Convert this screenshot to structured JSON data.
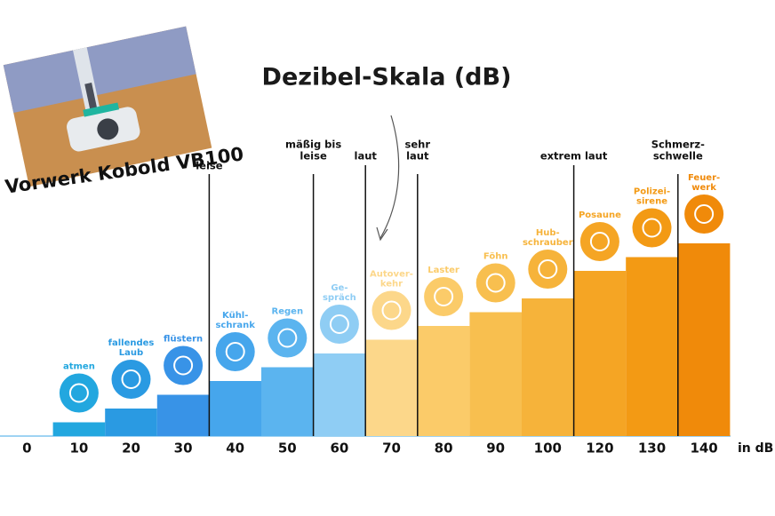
{
  "chart_data": {
    "type": "bar",
    "title": "Dezibel-Skala (dB)",
    "x_unit": "in dB",
    "overlay_caption": "Vorwerk Kobold VB100",
    "categories": [
      "0",
      "10",
      "20",
      "30",
      "40",
      "50",
      "60",
      "70",
      "80",
      "90",
      "100",
      "120",
      "130",
      "140"
    ],
    "values": [
      0,
      10,
      20,
      30,
      40,
      50,
      60,
      70,
      80,
      90,
      100,
      120,
      130,
      140
    ],
    "ylim": [
      0,
      145
    ],
    "colors": [
      "#7ec3ee",
      "#22a7df",
      "#2a9ae2",
      "#3893e7",
      "#46a6ec",
      "#5bb4ef",
      "#8fcdf4",
      "#fcd78a",
      "#fbcb69",
      "#f8bf4f",
      "#f6b33a",
      "#f5a524",
      "#f39a14",
      "#f08a0a"
    ],
    "icon_labels": [
      null,
      [
        "atmen"
      ],
      [
        "fallendes",
        "Laub"
      ],
      [
        "flüstern"
      ],
      [
        "Kühl-",
        "schrank"
      ],
      [
        "Regen"
      ],
      [
        "Ge-",
        "spräch"
      ],
      [
        "Autover-",
        "kehr"
      ],
      [
        "Laster"
      ],
      [
        "Föhn"
      ],
      [
        "Hub-",
        "schrauber"
      ],
      [
        "Posaune"
      ],
      [
        "Polizei-",
        "sirene"
      ],
      [
        "Feuer-",
        "werk"
      ]
    ],
    "thresholds": [
      [
        "leise"
      ],
      [
        "mäßig bis",
        "leise"
      ],
      [
        "laut"
      ],
      [
        "sehr",
        "laut"
      ],
      [
        "extrem laut"
      ],
      [
        "Schmerz-",
        "schwelle"
      ]
    ]
  }
}
